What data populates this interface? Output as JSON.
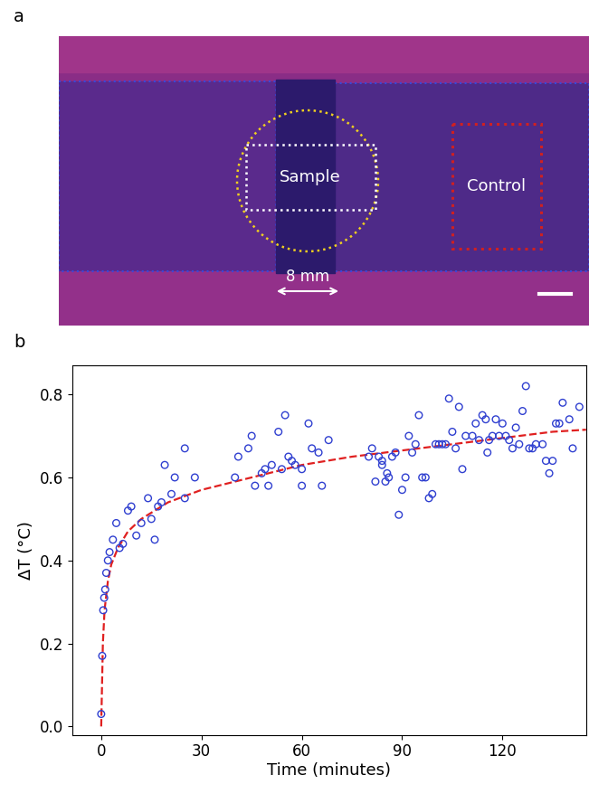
{
  "image": {
    "panel_label": "a",
    "sample_label": "Sample",
    "control_label": "Control",
    "scale_label": "8 mm"
  },
  "chart_data": {
    "panel_label": "b",
    "type": "scatter",
    "x_label": "Time (minutes)",
    "y_label": "ΔT (°C)",
    "xlim": [
      -8.6,
      145
    ],
    "ylim": [
      -0.02,
      0.87
    ],
    "xticks": [
      0,
      30,
      60,
      90,
      120
    ],
    "yticks": [
      {
        "value": 0,
        "label": "0.0"
      },
      0.2,
      0.4,
      0.6,
      0.8
    ],
    "series": [
      {
        "type": "scatter",
        "color": "#2f3fd0",
        "marker": "circle",
        "x": [
          0,
          0.3,
          0.6,
          0.9,
          1.2,
          1.5,
          2,
          2.5,
          3.5,
          4.5,
          5.5,
          6.5,
          8,
          9,
          10.5,
          12,
          14,
          15,
          16,
          17,
          18,
          19,
          21,
          22,
          25,
          25,
          28,
          40,
          41,
          44,
          45,
          46,
          48,
          49,
          50,
          51,
          53,
          54,
          55,
          56,
          57,
          58,
          60,
          60,
          62,
          63,
          65,
          66,
          68,
          80,
          81,
          82,
          83,
          84,
          84,
          85,
          85.5,
          86,
          87,
          88,
          89,
          90,
          91,
          92,
          93,
          94,
          95,
          96,
          97,
          98,
          99,
          100,
          101,
          102,
          103,
          104,
          105,
          106,
          107,
          108,
          109,
          111,
          112,
          113,
          114,
          115,
          115.5,
          116,
          117,
          118,
          119,
          120,
          121,
          122,
          123,
          124,
          125,
          126,
          127,
          128,
          129,
          130,
          132,
          133,
          134,
          135,
          136,
          137,
          138,
          140,
          141,
          143
        ],
        "values": [
          0.03,
          0.17,
          0.28,
          0.31,
          0.33,
          0.37,
          0.4,
          0.42,
          0.45,
          0.49,
          0.43,
          0.44,
          0.52,
          0.53,
          0.46,
          0.49,
          0.55,
          0.5,
          0.45,
          0.53,
          0.54,
          0.63,
          0.56,
          0.6,
          0.67,
          0.55,
          0.6,
          0.6,
          0.65,
          0.67,
          0.7,
          0.58,
          0.61,
          0.62,
          0.58,
          0.63,
          0.71,
          0.62,
          0.75,
          0.65,
          0.64,
          0.63,
          0.62,
          0.58,
          0.73,
          0.67,
          0.66,
          0.58,
          0.69,
          0.65,
          0.67,
          0.59,
          0.65,
          0.64,
          0.63,
          0.59,
          0.61,
          0.6,
          0.65,
          0.66,
          0.51,
          0.57,
          0.6,
          0.7,
          0.66,
          0.68,
          0.75,
          0.6,
          0.6,
          0.55,
          0.56,
          0.68,
          0.68,
          0.68,
          0.68,
          0.79,
          0.71,
          0.67,
          0.77,
          0.62,
          0.7,
          0.7,
          0.73,
          0.69,
          0.75,
          0.74,
          0.66,
          0.69,
          0.7,
          0.74,
          0.7,
          0.73,
          0.7,
          0.69,
          0.67,
          0.72,
          0.68,
          0.76,
          0.82,
          0.67,
          0.67,
          0.68,
          0.68,
          0.64,
          0.61,
          0.64,
          0.73,
          0.73,
          0.78,
          0.74,
          0.67,
          0.77
        ]
      },
      {
        "type": "line",
        "color": "#e02020",
        "line_style": "dashed",
        "x": [
          0,
          0.5,
          1,
          2,
          3,
          5,
          8,
          12,
          20,
          30,
          45,
          60,
          75,
          90,
          105,
          120,
          135,
          145
        ],
        "values": [
          0.0,
          0.2,
          0.28,
          0.35,
          0.39,
          0.43,
          0.47,
          0.5,
          0.54,
          0.57,
          0.6,
          0.63,
          0.65,
          0.665,
          0.68,
          0.695,
          0.71,
          0.715
        ]
      }
    ]
  }
}
